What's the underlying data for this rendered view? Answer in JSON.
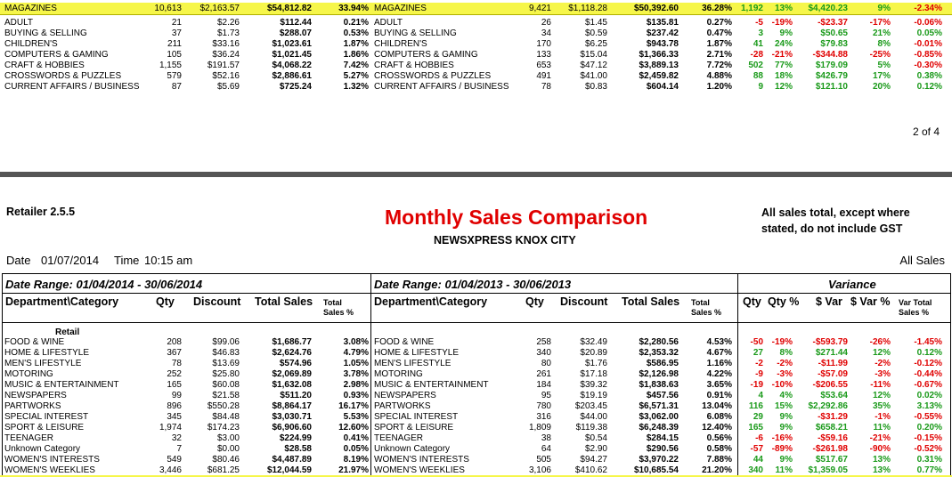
{
  "colors": {
    "highlight": "#f6f64a",
    "negative": "#e00000",
    "positive": "#1a9a1a",
    "title": "#e00000",
    "separator": "#555555"
  },
  "top_section": {
    "magazines": {
      "cur_label": "MAGAZINES",
      "cur_qty": "10,613",
      "cur_discount": "$2,163.57",
      "cur_sales": "$54,812.82",
      "cur_pct": "33.94%",
      "prev_label": "MAGAZINES",
      "prev_qty": "9,421",
      "prev_discount": "$1,118.28",
      "prev_sales": "$50,392.60",
      "prev_pct": "36.28%",
      "var_qty": "1,192",
      "var_qty_pct": "13%",
      "var_dollar": "$4,420.23",
      "var_dollar_pct": "9%",
      "var_total_pct": "-2.34%"
    },
    "rows": [
      {
        "cur_label": "ADULT",
        "cur_qty": "21",
        "cur_discount": "$2.26",
        "cur_sales": "$112.44",
        "cur_pct": "0.21%",
        "prev_label": "ADULT",
        "prev_qty": "26",
        "prev_discount": "$1.45",
        "prev_sales": "$135.81",
        "prev_pct": "0.27%",
        "var_qty": "-5",
        "var_qty_pct": "-19%",
        "var_dollar": "-$23.37",
        "var_dollar_pct": "-17%",
        "var_total_pct": "-0.06%"
      },
      {
        "cur_label": "BUYING & SELLING",
        "cur_qty": "37",
        "cur_discount": "$1.73",
        "cur_sales": "$288.07",
        "cur_pct": "0.53%",
        "prev_label": "BUYING & SELLING",
        "prev_qty": "34",
        "prev_discount": "$0.59",
        "prev_sales": "$237.42",
        "prev_pct": "0.47%",
        "var_qty": "3",
        "var_qty_pct": "9%",
        "var_dollar": "$50.65",
        "var_dollar_pct": "21%",
        "var_total_pct": "0.05%"
      },
      {
        "cur_label": "CHILDREN'S",
        "cur_qty": "211",
        "cur_discount": "$33.16",
        "cur_sales": "$1,023.61",
        "cur_pct": "1.87%",
        "prev_label": "CHILDREN'S",
        "prev_qty": "170",
        "prev_discount": "$6.25",
        "prev_sales": "$943.78",
        "prev_pct": "1.87%",
        "var_qty": "41",
        "var_qty_pct": "24%",
        "var_dollar": "$79.83",
        "var_dollar_pct": "8%",
        "var_total_pct": "-0.01%"
      },
      {
        "cur_label": "COMPUTERS & GAMING",
        "cur_qty": "105",
        "cur_discount": "$36.24",
        "cur_sales": "$1,021.45",
        "cur_pct": "1.86%",
        "prev_label": "COMPUTERS & GAMING",
        "prev_qty": "133",
        "prev_discount": "$15.04",
        "prev_sales": "$1,366.33",
        "prev_pct": "2.71%",
        "var_qty": "-28",
        "var_qty_pct": "-21%",
        "var_dollar": "-$344.88",
        "var_dollar_pct": "-25%",
        "var_total_pct": "-0.85%"
      },
      {
        "cur_label": "CRAFT & HOBBIES",
        "cur_qty": "1,155",
        "cur_discount": "$191.57",
        "cur_sales": "$4,068.22",
        "cur_pct": "7.42%",
        "prev_label": "CRAFT & HOBBIES",
        "prev_qty": "653",
        "prev_discount": "$47.12",
        "prev_sales": "$3,889.13",
        "prev_pct": "7.72%",
        "var_qty": "502",
        "var_qty_pct": "77%",
        "var_dollar": "$179.09",
        "var_dollar_pct": "5%",
        "var_total_pct": "-0.30%"
      },
      {
        "cur_label": "CROSSWORDS & PUZZLES",
        "cur_qty": "579",
        "cur_discount": "$52.16",
        "cur_sales": "$2,886.61",
        "cur_pct": "5.27%",
        "prev_label": "CROSSWORDS & PUZZLES",
        "prev_qty": "491",
        "prev_discount": "$41.00",
        "prev_sales": "$2,459.82",
        "prev_pct": "4.88%",
        "var_qty": "88",
        "var_qty_pct": "18%",
        "var_dollar": "$426.79",
        "var_dollar_pct": "17%",
        "var_total_pct": "0.38%"
      },
      {
        "cur_label": "CURRENT AFFAIRS / BUSINESS",
        "cur_qty": "87",
        "cur_discount": "$5.69",
        "cur_sales": "$725.24",
        "cur_pct": "1.32%",
        "prev_label": "CURRENT AFFAIRS / BUSINESS",
        "prev_qty": "78",
        "prev_discount": "$0.83",
        "prev_sales": "$604.14",
        "prev_pct": "1.20%",
        "var_qty": "9",
        "var_qty_pct": "12%",
        "var_dollar": "$121.10",
        "var_dollar_pct": "20%",
        "var_total_pct": "0.12%"
      }
    ],
    "page_number": "2 of 4"
  },
  "header": {
    "retailer": "Retailer 2.5.5",
    "title": "Monthly Sales Comparison",
    "store": "NEWSXPRESS KNOX CITY",
    "gst_note_1": "All sales total, except where",
    "gst_note_2": "stated, do not include GST",
    "date_label": "Date",
    "date_value": "01/07/2014",
    "time_label": "Time",
    "time_value": "10:15 am",
    "all_sales": "All Sales"
  },
  "table_header": {
    "range_current": "Date Range: 01/04/2014 - 30/06/2014",
    "range_previous": "Date Range: 01/04/2013 - 30/06/2013",
    "variance": "Variance",
    "col_dept": "Department\\Category",
    "col_qty": "Qty",
    "col_discount": "Discount",
    "col_total_sales": "Total Sales",
    "col_total_1": "Total",
    "col_total_2": "Sales %",
    "col_vqty": "Qty",
    "col_vqty_pct": "Qty %",
    "col_vdollar": "$ Var",
    "col_vdollar_pct": "$ Var %",
    "col_vtotal_1": "Var Total",
    "col_vtotal_2": "Sales  %"
  },
  "retail_label": "Retail",
  "retail_rows": [
    {
      "cur_label": "FOOD & WINE",
      "cur_qty": "208",
      "cur_discount": "$99.06",
      "cur_sales": "$1,686.77",
      "cur_pct": "3.08%",
      "prev_label": "FOOD & WINE",
      "prev_qty": "258",
      "prev_discount": "$32.49",
      "prev_sales": "$2,280.56",
      "prev_pct": "4.53%",
      "var_qty": "-50",
      "var_qty_pct": "-19%",
      "var_dollar": "-$593.79",
      "var_dollar_pct": "-26%",
      "var_total_pct": "-1.45%"
    },
    {
      "cur_label": "HOME & LIFESTYLE",
      "cur_qty": "367",
      "cur_discount": "$46.83",
      "cur_sales": "$2,624.76",
      "cur_pct": "4.79%",
      "prev_label": "HOME & LIFESTYLE",
      "prev_qty": "340",
      "prev_discount": "$20.89",
      "prev_sales": "$2,353.32",
      "prev_pct": "4.67%",
      "var_qty": "27",
      "var_qty_pct": "8%",
      "var_dollar": "$271.44",
      "var_dollar_pct": "12%",
      "var_total_pct": "0.12%"
    },
    {
      "cur_label": "MEN'S LIFESTYLE",
      "cur_qty": "78",
      "cur_discount": "$13.69",
      "cur_sales": "$574.96",
      "cur_pct": "1.05%",
      "prev_label": "MEN'S LIFESTYLE",
      "prev_qty": "80",
      "prev_discount": "$1.76",
      "prev_sales": "$586.95",
      "prev_pct": "1.16%",
      "var_qty": "-2",
      "var_qty_pct": "-2%",
      "var_dollar": "-$11.99",
      "var_dollar_pct": "-2%",
      "var_total_pct": "-0.12%"
    },
    {
      "cur_label": "MOTORING",
      "cur_qty": "252",
      "cur_discount": "$25.80",
      "cur_sales": "$2,069.89",
      "cur_pct": "3.78%",
      "prev_label": "MOTORING",
      "prev_qty": "261",
      "prev_discount": "$17.18",
      "prev_sales": "$2,126.98",
      "prev_pct": "4.22%",
      "var_qty": "-9",
      "var_qty_pct": "-3%",
      "var_dollar": "-$57.09",
      "var_dollar_pct": "-3%",
      "var_total_pct": "-0.44%"
    },
    {
      "cur_label": "MUSIC & ENTERTAINMENT",
      "cur_qty": "165",
      "cur_discount": "$60.08",
      "cur_sales": "$1,632.08",
      "cur_pct": "2.98%",
      "prev_label": "MUSIC & ENTERTAINMENT",
      "prev_qty": "184",
      "prev_discount": "$39.32",
      "prev_sales": "$1,838.63",
      "prev_pct": "3.65%",
      "var_qty": "-19",
      "var_qty_pct": "-10%",
      "var_dollar": "-$206.55",
      "var_dollar_pct": "-11%",
      "var_total_pct": "-0.67%"
    },
    {
      "cur_label": "NEWSPAPERS",
      "cur_qty": "99",
      "cur_discount": "$21.58",
      "cur_sales": "$511.20",
      "cur_pct": "0.93%",
      "prev_label": "NEWSPAPERS",
      "prev_qty": "95",
      "prev_discount": "$19.19",
      "prev_sales": "$457.56",
      "prev_pct": "0.91%",
      "var_qty": "4",
      "var_qty_pct": "4%",
      "var_dollar": "$53.64",
      "var_dollar_pct": "12%",
      "var_total_pct": "0.02%"
    },
    {
      "cur_label": "PARTWORKS",
      "cur_qty": "896",
      "cur_discount": "$550.28",
      "cur_sales": "$8,864.17",
      "cur_pct": "16.17%",
      "prev_label": "PARTWORKS",
      "prev_qty": "780",
      "prev_discount": "$203.45",
      "prev_sales": "$6,571.31",
      "prev_pct": "13.04%",
      "var_qty": "116",
      "var_qty_pct": "15%",
      "var_dollar": "$2,292.86",
      "var_dollar_pct": "35%",
      "var_total_pct": "3.13%"
    },
    {
      "cur_label": "SPECIAL INTEREST",
      "cur_qty": "345",
      "cur_discount": "$84.48",
      "cur_sales": "$3,030.71",
      "cur_pct": "5.53%",
      "prev_label": "SPECIAL INTEREST",
      "prev_qty": "316",
      "prev_discount": "$44.00",
      "prev_sales": "$3,062.00",
      "prev_pct": "6.08%",
      "var_qty": "29",
      "var_qty_pct": "9%",
      "var_dollar": "-$31.29",
      "var_dollar_pct": "-1%",
      "var_total_pct": "-0.55%"
    },
    {
      "cur_label": "SPORT & LEISURE",
      "cur_qty": "1,974",
      "cur_discount": "$174.23",
      "cur_sales": "$6,906.60",
      "cur_pct": "12.60%",
      "prev_label": "SPORT & LEISURE",
      "prev_qty": "1,809",
      "prev_discount": "$119.38",
      "prev_sales": "$6,248.39",
      "prev_pct": "12.40%",
      "var_qty": "165",
      "var_qty_pct": "9%",
      "var_dollar": "$658.21",
      "var_dollar_pct": "11%",
      "var_total_pct": "0.20%"
    },
    {
      "cur_label": "TEENAGER",
      "cur_qty": "32",
      "cur_discount": "$3.00",
      "cur_sales": "$224.99",
      "cur_pct": "0.41%",
      "prev_label": "TEENAGER",
      "prev_qty": "38",
      "prev_discount": "$0.54",
      "prev_sales": "$284.15",
      "prev_pct": "0.56%",
      "var_qty": "-6",
      "var_qty_pct": "-16%",
      "var_dollar": "-$59.16",
      "var_dollar_pct": "-21%",
      "var_total_pct": "-0.15%"
    },
    {
      "cur_label": "Unknown Category",
      "cur_qty": "7",
      "cur_discount": "$0.00",
      "cur_sales": "$28.58",
      "cur_pct": "0.05%",
      "prev_label": "Unknown Category",
      "prev_qty": "64",
      "prev_discount": "$2.90",
      "prev_sales": "$290.56",
      "prev_pct": "0.58%",
      "var_qty": "-57",
      "var_qty_pct": "-89%",
      "var_dollar": "-$261.98",
      "var_dollar_pct": "-90%",
      "var_total_pct": "-0.52%"
    },
    {
      "cur_label": "WOMEN'S INTERESTS",
      "cur_qty": "549",
      "cur_discount": "$80.46",
      "cur_sales": "$4,487.89",
      "cur_pct": "8.19%",
      "prev_label": "WOMEN'S INTERESTS",
      "prev_qty": "505",
      "prev_discount": "$94.27",
      "prev_sales": "$3,970.22",
      "prev_pct": "7.88%",
      "var_qty": "44",
      "var_qty_pct": "9%",
      "var_dollar": "$517.67",
      "var_dollar_pct": "13%",
      "var_total_pct": "0.31%"
    },
    {
      "cur_label": "WOMEN'S WEEKLIES",
      "cur_qty": "3,446",
      "cur_discount": "$681.25",
      "cur_sales": "$12,044.59",
      "cur_pct": "21.97%",
      "prev_label": "WOMEN'S WEEKLIES",
      "prev_qty": "3,106",
      "prev_discount": "$410.62",
      "prev_sales": "$10,685.54",
      "prev_pct": "21.20%",
      "var_qty": "340",
      "var_qty_pct": "11%",
      "var_dollar": "$1,359.05",
      "var_dollar_pct": "13%",
      "var_total_pct": "0.77%"
    }
  ]
}
